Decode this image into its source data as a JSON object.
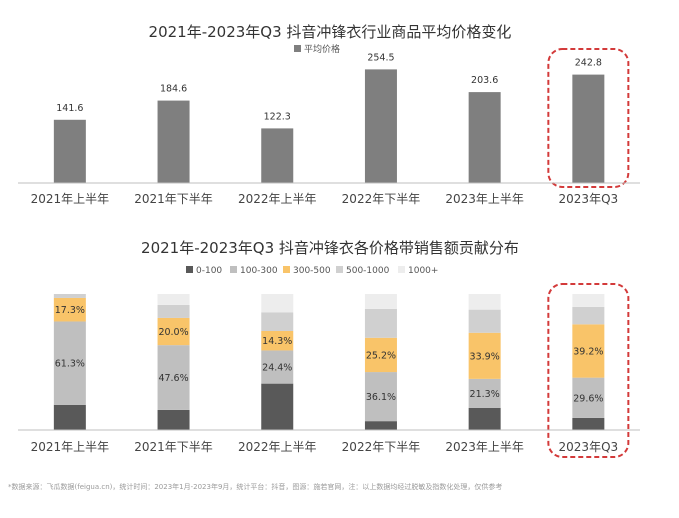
{
  "colors": {
    "bar": "#7f7f7f",
    "axis": "#bfbfbf",
    "highlight": "#d33a3a",
    "segments": [
      "#595959",
      "#bfbfbf",
      "#f9c469",
      "#d0d0d0",
      "#ededed"
    ]
  },
  "chart_data": [
    {
      "type": "bar",
      "title": "2021年-2023年Q3 抖音冲锋衣行业商品平均价格变化",
      "categories": [
        "2021年上半年",
        "2021年下半年",
        "2022年上半年",
        "2022年下半年",
        "2023年上半年",
        "2023年Q3"
      ],
      "series": [
        {
          "name": "平均价格",
          "values": [
            141.6,
            184.6,
            122.3,
            254.5,
            203.6,
            242.8
          ]
        }
      ],
      "value_labels": [
        "141.6",
        "184.6",
        "122.3",
        "254.5",
        "203.6",
        "242.8"
      ],
      "ylim": [
        0,
        280
      ],
      "grid": false,
      "legend": "top-center",
      "highlight_index": 5
    },
    {
      "type": "bar",
      "stacked": true,
      "normalized": true,
      "title": "2021年-2023年Q3 抖音冲锋衣各价格带销售额贡献分布",
      "categories": [
        "2021年上半年",
        "2021年下半年",
        "2022年上半年",
        "2022年下半年",
        "2023年上半年",
        "2023年Q3"
      ],
      "series": [
        {
          "name": "0-100",
          "values": [
            18.5,
            14.8,
            34.1,
            6.5,
            16.3,
            8.9
          ]
        },
        {
          "name": "100-300",
          "values": [
            61.3,
            47.6,
            24.4,
            36.1,
            21.3,
            29.6
          ]
        },
        {
          "name": "300-500",
          "values": [
            17.3,
            20.0,
            14.3,
            25.2,
            33.9,
            39.2
          ]
        },
        {
          "name": "500-1000",
          "values": [
            2.9,
            9.6,
            13.6,
            21.2,
            17.0,
            12.8
          ]
        },
        {
          "name": "1000+",
          "values": [
            0.0,
            8.0,
            13.6,
            11.0,
            11.5,
            9.5
          ]
        }
      ],
      "value_labels": {
        "100-300": [
          "61.3%",
          "47.6%",
          "24.4%",
          "36.1%",
          "21.3%",
          "29.6%"
        ],
        "300-500": [
          "17.3%",
          "20.0%",
          "14.3%",
          "25.2%",
          "33.9%",
          "39.2%"
        ]
      },
      "ylim": [
        0,
        100
      ],
      "grid": false,
      "legend": "top-center",
      "highlight_index": 5
    }
  ],
  "footnote": "*数据来源：飞瓜数据(feigua.cn)，统计时间：2023年1月-2023年9月，统计平台：抖音，图源：施若官网，注：以上数据均经过脱敏及指数化处理，仅供参考"
}
